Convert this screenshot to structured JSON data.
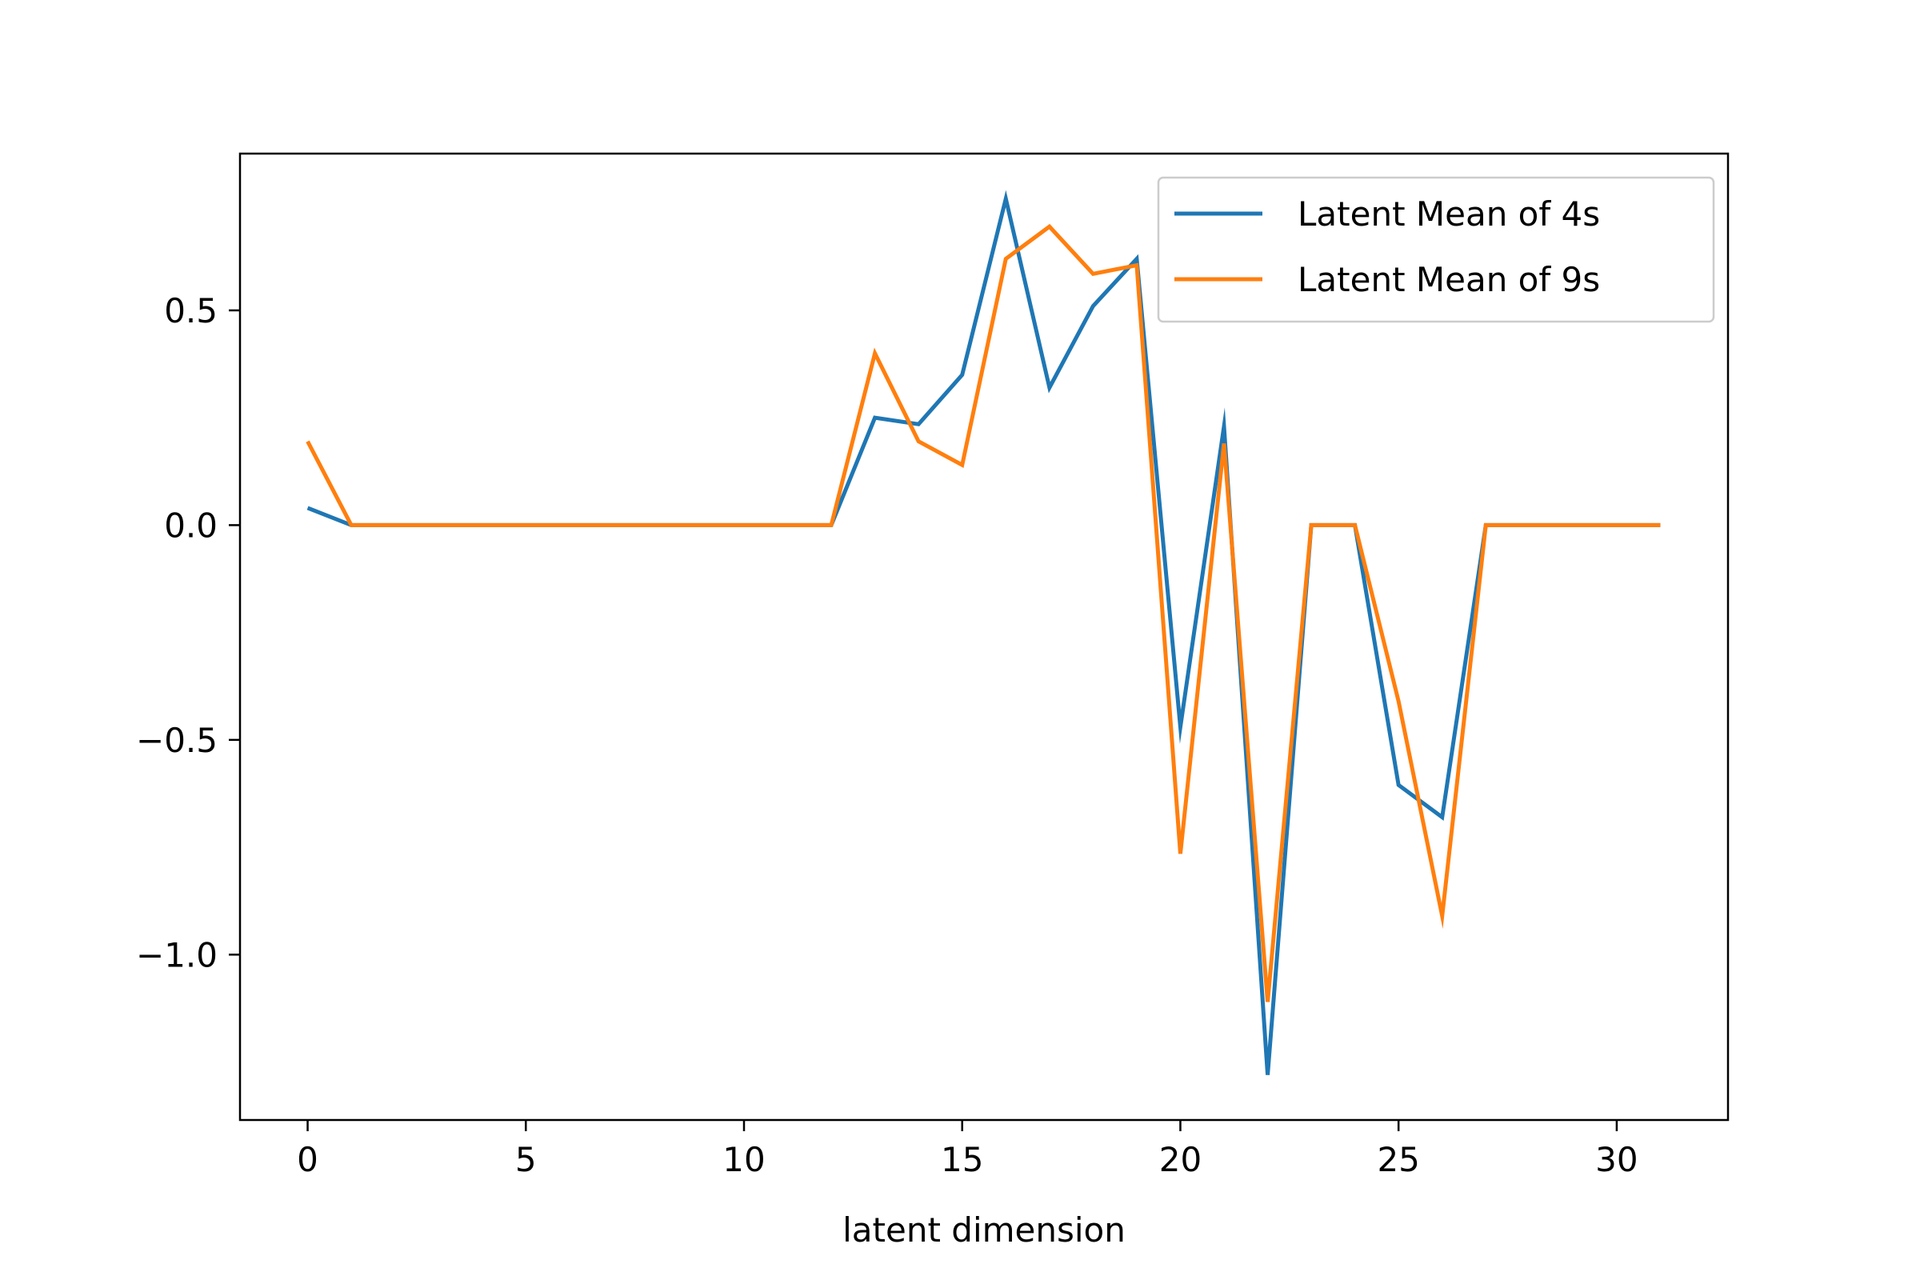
{
  "chart_data": {
    "type": "line",
    "title": "",
    "xlabel": "latent dimension",
    "ylabel": "",
    "xlim": [
      -1.55,
      32.55
    ],
    "ylim": [
      -1.385,
      0.865
    ],
    "x_ticks": [
      0,
      5,
      10,
      15,
      20,
      25,
      30
    ],
    "x_tick_labels": [
      "0",
      "5",
      "10",
      "15",
      "20",
      "25",
      "30"
    ],
    "y_ticks": [
      0.5,
      0.0,
      -0.5,
      -1.0
    ],
    "y_tick_labels": [
      "0.5",
      "0.0",
      "−0.5",
      "−1.0"
    ],
    "grid": false,
    "legend_position": "top-right",
    "x": [
      0,
      1,
      2,
      3,
      4,
      5,
      6,
      7,
      8,
      9,
      10,
      11,
      12,
      13,
      14,
      15,
      16,
      17,
      18,
      19,
      20,
      21,
      22,
      23,
      24,
      25,
      26,
      27,
      28,
      29,
      30,
      31
    ],
    "series": [
      {
        "name": "Latent Mean of 4s",
        "color": "#1f77b4",
        "values": [
          0.04,
          0,
          0,
          0,
          0,
          0,
          0,
          0,
          0,
          0,
          0,
          0,
          0,
          0.25,
          0.235,
          0.35,
          0.76,
          0.32,
          0.51,
          0.62,
          -0.47,
          0.23,
          -1.28,
          0,
          0,
          -0.605,
          -0.68,
          0,
          0,
          0,
          0,
          0
        ]
      },
      {
        "name": "Latent Mean of 9s",
        "color": "#ff7f0e",
        "values": [
          0.195,
          0,
          0,
          0,
          0,
          0,
          0,
          0,
          0,
          0,
          0,
          0,
          0,
          0.4,
          0.195,
          0.14,
          0.62,
          0.695,
          0.585,
          0.605,
          -0.765,
          0.19,
          -1.11,
          0,
          0,
          -0.41,
          -0.91,
          0,
          0,
          0,
          0,
          0
        ]
      }
    ]
  }
}
